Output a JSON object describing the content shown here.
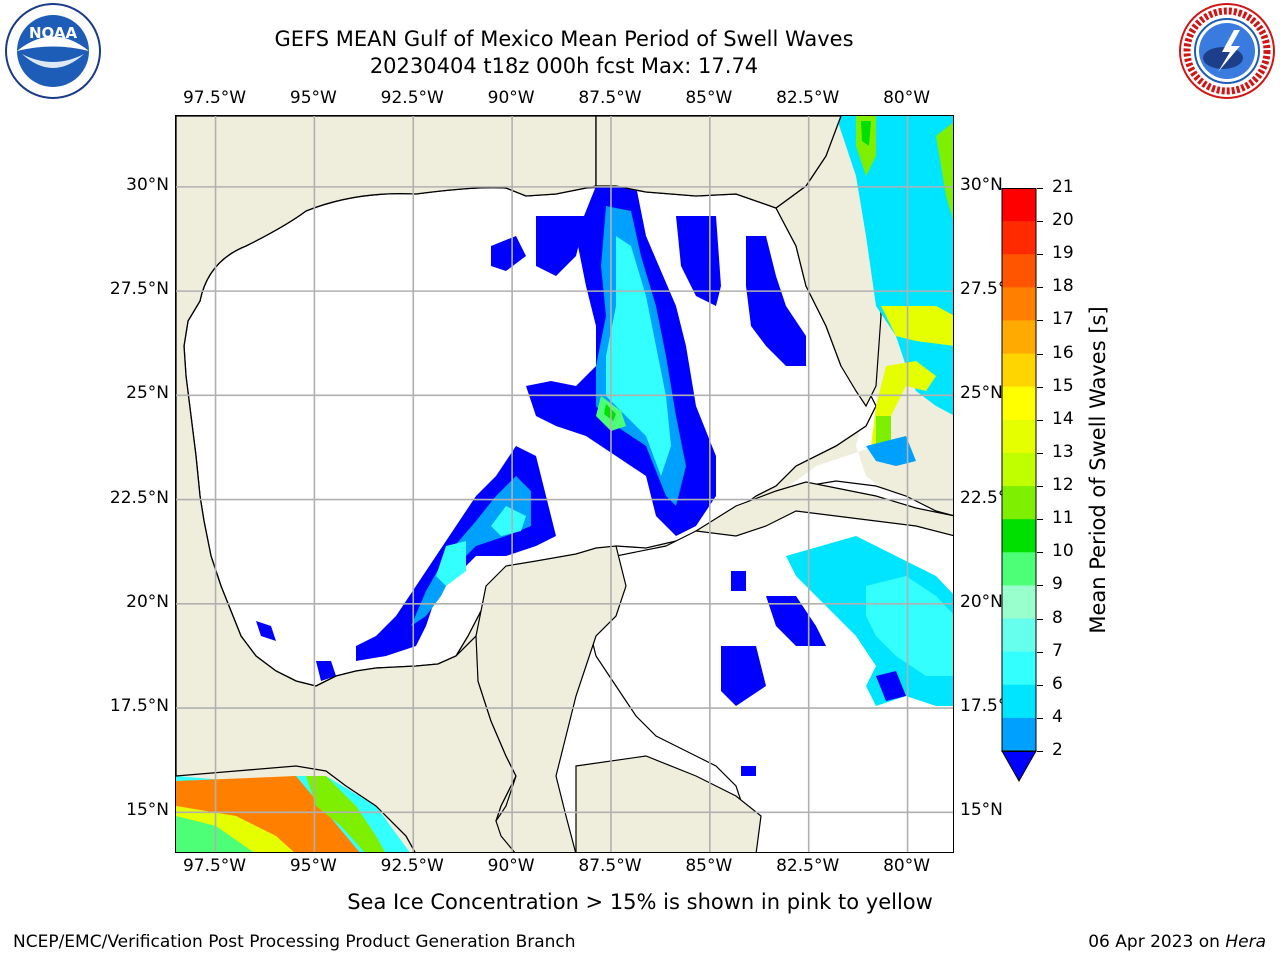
{
  "title": {
    "line1": "GEFS MEAN Gulf of Mexico Mean Period of Swell Waves",
    "line2": "20230404 t18z 000h fcst   Max: 17.74"
  },
  "logos": {
    "left": {
      "text": "NOAA",
      "icon": "noaa-logo-icon"
    },
    "right": {
      "text": "NATIONAL WEATHER SERVICE",
      "icon": "nws-logo-icon"
    }
  },
  "axes": {
    "top_ticks": [
      "97.5°W",
      "95°W",
      "92.5°W",
      "90°W",
      "87.5°W",
      "85°W",
      "82.5°W",
      "80°W"
    ],
    "bottom_ticks": [
      "97.5°W",
      "95°W",
      "92.5°W",
      "90°W",
      "87.5°W",
      "85°W",
      "82.5°W",
      "80°W"
    ],
    "left_ticks": [
      "30°N",
      "27.5°N",
      "25°N",
      "22.5°N",
      "20°N",
      "17.5°N",
      "15°N"
    ],
    "right_ticks": [
      "30°N",
      "27.5°N",
      "25°N",
      "22.5°N",
      "20°N",
      "17.5°N",
      "15°N"
    ]
  },
  "colorbar": {
    "label": "Mean Period of Swell Waves [s]",
    "ticks": [
      "21",
      "20",
      "19",
      "18",
      "17",
      "16",
      "15",
      "14",
      "13",
      "12",
      "11",
      "10",
      "9",
      "8",
      "7",
      "6",
      "4",
      "2"
    ],
    "colors": [
      "#ff0000",
      "#ff2a00",
      "#ff5500",
      "#ff8000",
      "#ffaa00",
      "#ffd500",
      "#ffff00",
      "#e5ff00",
      "#c0ff00",
      "#7fef00",
      "#00e000",
      "#4dff77",
      "#99ffcc",
      "#66ffee",
      "#33ffff",
      "#00e5ff",
      "#00a0ff",
      "#0000ff"
    ],
    "extend_color": "#0000ff"
  },
  "chart_data": {
    "type": "heatmap",
    "variable": "Mean Period of Swell Waves [s]",
    "max_value": 17.74,
    "lon_range": [
      -98.5,
      -78.8
    ],
    "lat_range": [
      14,
      31.7
    ],
    "colorbar_levels": [
      2,
      4,
      6,
      7,
      8,
      9,
      10,
      11,
      12,
      13,
      14,
      15,
      16,
      17,
      18,
      19,
      20,
      21
    ]
  },
  "subtitle": "Sea Ice Concentration > 15% is shown in pink to yellow",
  "footer": {
    "left": "NCEP/EMC/Verification Post Processing Product Generation Branch",
    "right_date": "06 Apr 2023 on ",
    "right_host": "Hera"
  },
  "colors": {
    "land": "#efeedd",
    "ocean": "#ffffff",
    "grid": "#b0b0b0"
  }
}
